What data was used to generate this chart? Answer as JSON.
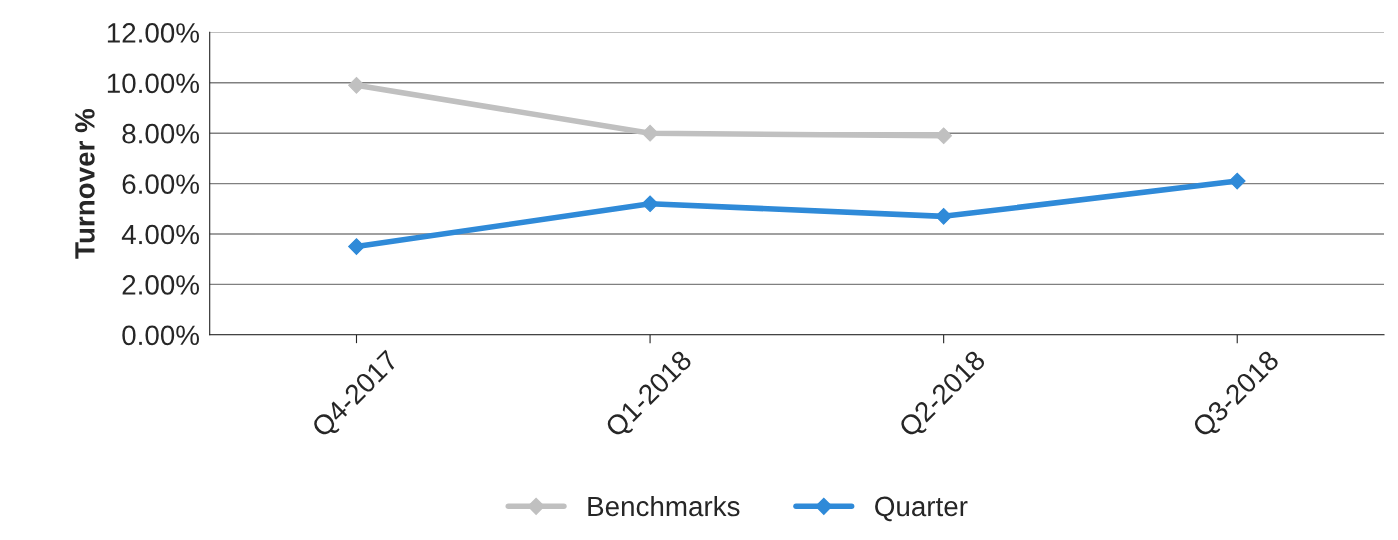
{
  "chart_data": {
    "type": "line",
    "ylabel": "Turnover %",
    "categories": [
      "Q4-2017",
      "Q1-2018",
      "Q2-2018",
      "Q3-2018"
    ],
    "series": [
      {
        "name": "Benchmarks",
        "color": "#c0c0c0",
        "values": [
          9.9,
          8.0,
          7.9,
          null
        ]
      },
      {
        "name": "Quarter",
        "color": "#2f8ad8",
        "values": [
          3.5,
          5.2,
          4.7,
          6.1
        ]
      }
    ],
    "ylim": [
      0,
      12
    ],
    "yticks": [
      {
        "value": 0,
        "label": "0.00%"
      },
      {
        "value": 2,
        "label": "2.00%"
      },
      {
        "value": 4,
        "label": "4.00%"
      },
      {
        "value": 6,
        "label": "6.00%"
      },
      {
        "value": 8,
        "label": "8.00%"
      },
      {
        "value": 10,
        "label": "10.00%"
      },
      {
        "value": 12,
        "label": "12.00%"
      }
    ],
    "grid": "y",
    "legend": "bottom",
    "marker": "diamond",
    "line_style": "solid"
  }
}
